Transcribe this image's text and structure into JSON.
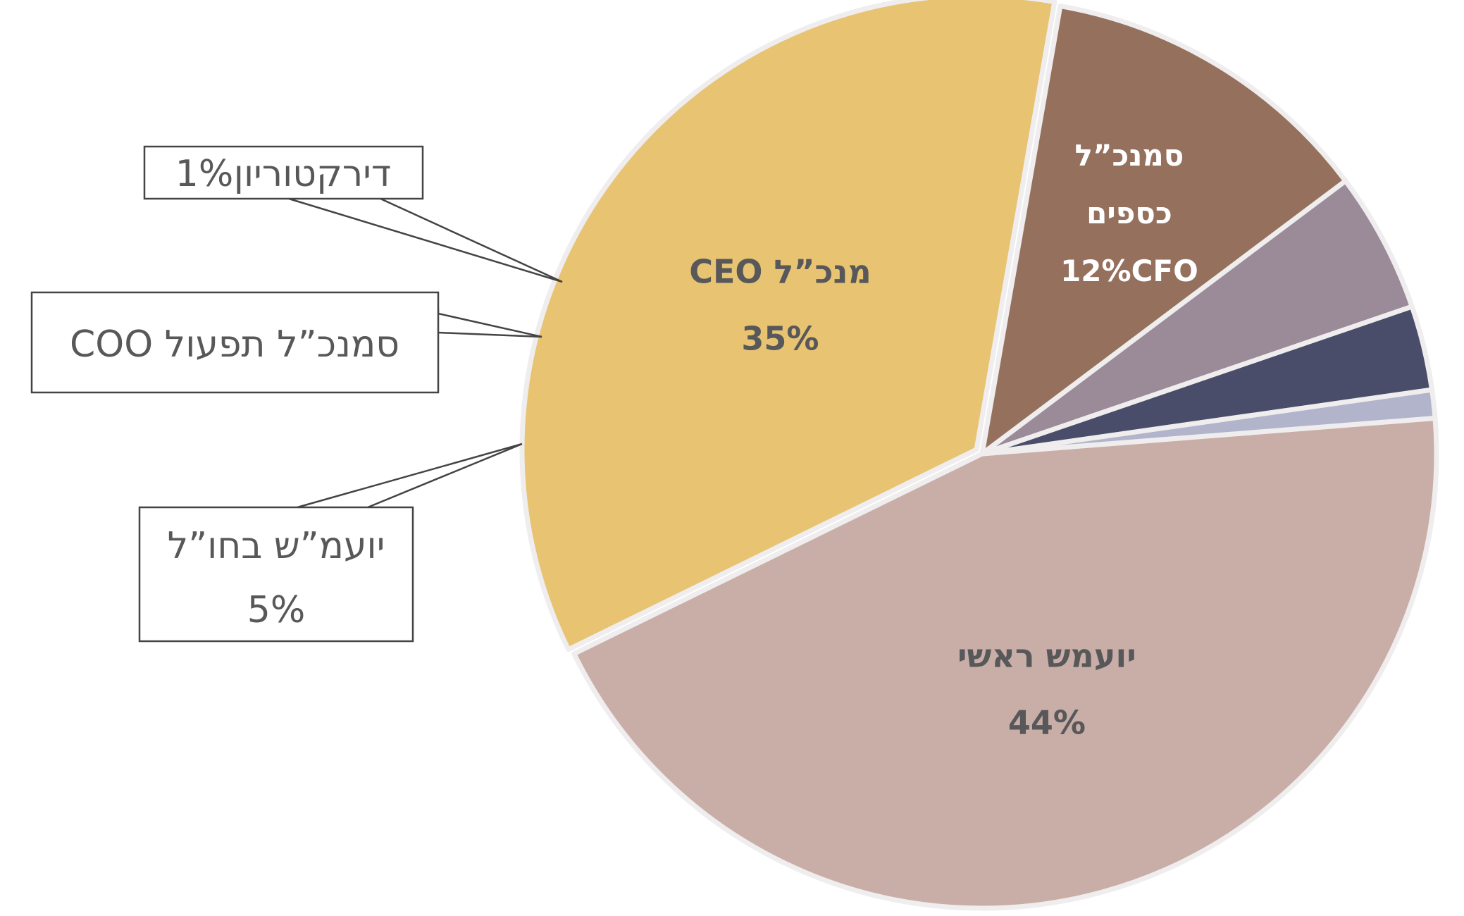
{
  "chart_data": {
    "type": "pie",
    "title": "",
    "slices": [
      {
        "label_lines": [
          "יועמש ראשי"
        ],
        "percent_label": "44%",
        "value": 44,
        "color": "#c9aea7",
        "label_style": "inside-dark"
      },
      {
        "label_lines": [
          "מנכ”ל   CEO"
        ],
        "percent_label": "35%",
        "value": 35,
        "color": "#e7c372",
        "label_style": "inside-dark"
      },
      {
        "label_lines": [
          "סמנכ”ל",
          "כספים"
        ],
        "percent_label": "12%CFO",
        "value": 12,
        "color": "#95705d",
        "label_style": "inside-light"
      },
      {
        "label_lines": [
          "יועמ”ש בחו”ל"
        ],
        "percent_label": "5%",
        "value": 5,
        "color": "#9b8b98",
        "label_style": "callout"
      },
      {
        "label_lines": [
          "סמנכ”ל תפעול  COO"
        ],
        "percent_label": "",
        "value": 3,
        "color": "#4a4d69",
        "label_style": "callout"
      },
      {
        "label_lines": [
          "דירקטוריון"
        ],
        "percent_label": "1%",
        "value": 1,
        "color": "#b1b4ca",
        "label_style": "callout"
      }
    ]
  }
}
